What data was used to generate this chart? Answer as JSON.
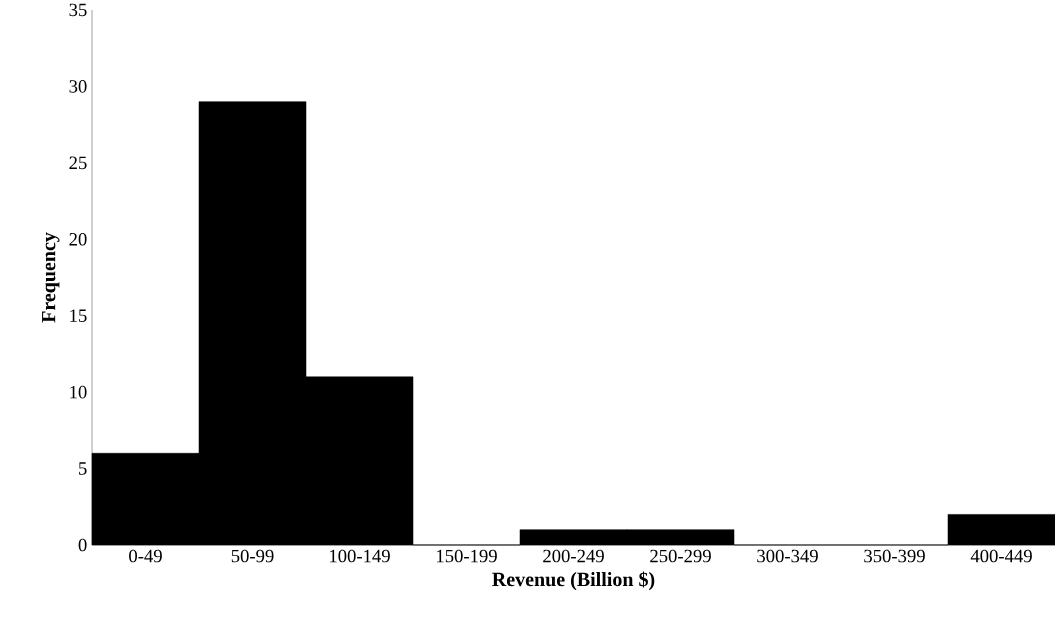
{
  "chart_data": {
    "type": "bar",
    "xlabel": "Revenue (Billion $)",
    "ylabel": "Frequency",
    "categories": [
      "0-49",
      "50-99",
      "100-149",
      "150-199",
      "200-249",
      "250-299",
      "300-349",
      "350-399",
      "400-449"
    ],
    "values": [
      6,
      29,
      11,
      0,
      1,
      1,
      0,
      0,
      2
    ],
    "color": "#000000",
    "ylim": [
      0,
      35
    ],
    "yticks": [
      0,
      5,
      10,
      15,
      20,
      25,
      30,
      35
    ]
  }
}
